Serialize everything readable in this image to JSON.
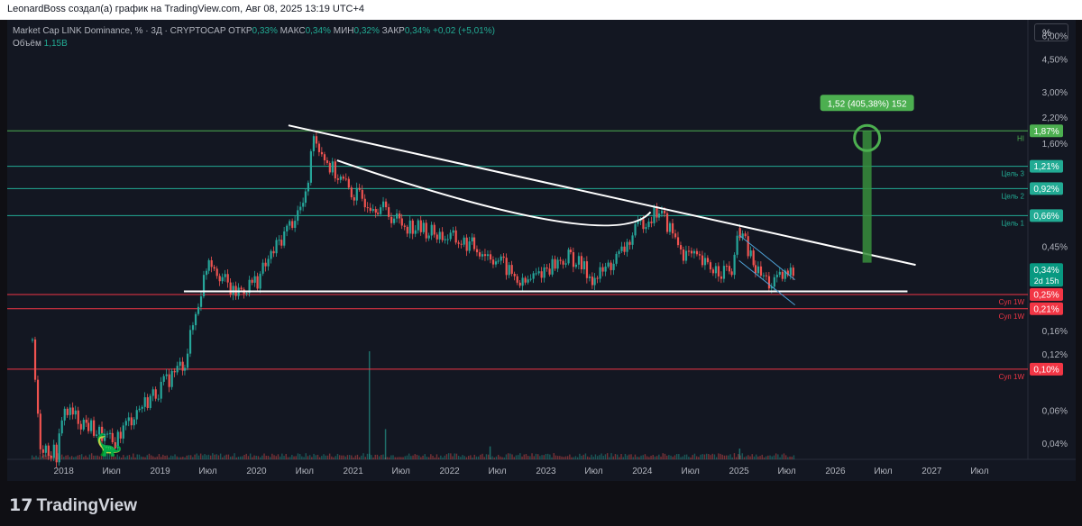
{
  "header": {
    "caption": "LeonardBoss создал(а) график на TradingView.com, Авг 08, 2025 13:19 UTC+4"
  },
  "legend": {
    "symbol": "Market Cap LINK Dominance, %",
    "interval": "3Д",
    "source": "CRYPTOCAP",
    "open_label": "ОТКР",
    "open_value": "0,33%",
    "high_label": "МАКС",
    "high_value": "0,34%",
    "low_label": "МИН",
    "low_value": "0,32%",
    "close_label": "ЗАКР",
    "close_value": "0,34%",
    "change": "+0,02 (+5,01%)",
    "volume_label": "Объём",
    "volume_value": "1,15B"
  },
  "scale_button": "%",
  "footer": {
    "brand": "TradingView",
    "brand_mark": "17"
  },
  "colors": {
    "background": "#131722",
    "up": "#26a69a",
    "down": "#ef5350",
    "support": "#f23645",
    "target": "#22ab94",
    "high": "#4caf50",
    "projection": "#388e3c"
  },
  "chart_data": {
    "type": "candlestick",
    "title": "Market Cap LINK Dominance, %",
    "yscale": "log",
    "ylim": [
      0.033,
      7.0
    ],
    "x_range": [
      "2017-06",
      "2027-12"
    ],
    "y_ticks": [
      "6,00%",
      "4,50%",
      "3,00%",
      "2,20%",
      "1,60%",
      "0,45%",
      "0,16%",
      "0,12%",
      "0,06%",
      "0,04%"
    ],
    "y_tick_values": [
      6.0,
      4.5,
      3.0,
      2.2,
      1.6,
      0.45,
      0.16,
      0.12,
      0.06,
      0.04
    ],
    "x_ticks": [
      "2018",
      "Июл",
      "2019",
      "Июл",
      "2020",
      "Июл",
      "2021",
      "Июл",
      "2022",
      "Июл",
      "2023",
      "Июл",
      "2024",
      "Июл",
      "2025",
      "Июл",
      "2026",
      "Июл",
      "2027",
      "Июл"
    ],
    "x_tick_dates": [
      "2018-01",
      "2018-07",
      "2019-01",
      "2019-07",
      "2020-01",
      "2020-07",
      "2021-01",
      "2021-07",
      "2022-01",
      "2022-07",
      "2023-01",
      "2023-07",
      "2024-01",
      "2024-07",
      "2025-01",
      "2025-07",
      "2026-01",
      "2026-07",
      "2027-01",
      "2027-07"
    ],
    "price_path": [
      [
        "2017-09",
        0.13
      ],
      [
        "2017-10",
        0.04
      ],
      [
        "2017-12",
        0.035
      ],
      [
        "2018-01",
        0.06
      ],
      [
        "2018-04",
        0.05
      ],
      [
        "2018-07",
        0.04
      ],
      [
        "2018-10",
        0.06
      ],
      [
        "2019-01",
        0.08
      ],
      [
        "2019-04",
        0.11
      ],
      [
        "2019-07",
        0.4
      ],
      [
        "2019-10",
        0.25
      ],
      [
        "2020-01",
        0.3
      ],
      [
        "2020-04",
        0.5
      ],
      [
        "2020-07",
        0.8
      ],
      [
        "2020-08",
        1.78
      ],
      [
        "2020-10",
        1.2
      ],
      [
        "2021-01",
        0.85
      ],
      [
        "2021-04",
        0.75
      ],
      [
        "2021-07",
        0.6
      ],
      [
        "2021-10",
        0.55
      ],
      [
        "2022-01",
        0.5
      ],
      [
        "2022-04",
        0.45
      ],
      [
        "2022-07",
        0.38
      ],
      [
        "2022-10",
        0.28
      ],
      [
        "2023-01",
        0.35
      ],
      [
        "2023-04",
        0.4
      ],
      [
        "2023-07",
        0.3
      ],
      [
        "2023-10",
        0.4
      ],
      [
        "2024-01",
        0.62
      ],
      [
        "2024-03",
        0.7
      ],
      [
        "2024-06",
        0.42
      ],
      [
        "2024-09",
        0.35
      ],
      [
        "2024-12",
        0.33
      ],
      [
        "2025-01",
        0.55
      ],
      [
        "2025-03",
        0.34
      ],
      [
        "2025-05",
        0.28
      ],
      [
        "2025-08",
        0.34
      ]
    ],
    "volume_peaks": [
      [
        "2021-03",
        1.0
      ],
      [
        "2021-05",
        0.28
      ],
      [
        "2022-06",
        0.12
      ],
      [
        "2025-01",
        0.1
      ]
    ],
    "horizontal_levels": [
      {
        "value": 1.87,
        "label": "1,87%",
        "tag": "HI",
        "color": "#4caf50"
      },
      {
        "value": 1.21,
        "label": "1,21%",
        "tag": "Цель 3",
        "color": "#22ab94"
      },
      {
        "value": 0.92,
        "label": "0,92%",
        "tag": "Цель 2",
        "color": "#22ab94"
      },
      {
        "value": 0.66,
        "label": "0,66%",
        "tag": "Цель 1",
        "color": "#22ab94"
      },
      {
        "value": 0.25,
        "label": "0,25%",
        "tag": "Суп 1W",
        "color": "#f23645"
      },
      {
        "value": 0.21,
        "label": "0,21%",
        "tag": "Суп 1W",
        "color": "#f23645"
      },
      {
        "value": 0.1,
        "label": "0,10%",
        "tag": "Суп 1W",
        "color": "#f23645"
      }
    ],
    "current_price": {
      "value": 0.34,
      "label": "0,34%",
      "countdown": "2d 15h"
    },
    "trendlines": [
      {
        "name": "descending resistance",
        "from": [
          "2020-05",
          2.0
        ],
        "to": [
          "2026-11",
          0.36
        ]
      },
      {
        "name": "base support",
        "from": [
          "2019-04",
          0.26
        ],
        "to": [
          "2026-10",
          0.26
        ]
      },
      {
        "name": "channel upper",
        "from": [
          "2025-01",
          0.52
        ],
        "to": [
          "2025-08",
          0.3
        ]
      },
      {
        "name": "channel lower",
        "from": [
          "2025-01",
          0.38
        ],
        "to": [
          "2025-08",
          0.22
        ]
      }
    ],
    "arc": {
      "from": [
        "2020-11",
        1.3
      ],
      "via": [
        "2023-02",
        0.62
      ],
      "to": [
        "2024-02",
        0.69
      ]
    },
    "projection": {
      "label": "1,52 (405,38%) 152",
      "from": [
        "2026-05",
        0.37
      ],
      "to": [
        "2026-05",
        1.87
      ]
    }
  }
}
